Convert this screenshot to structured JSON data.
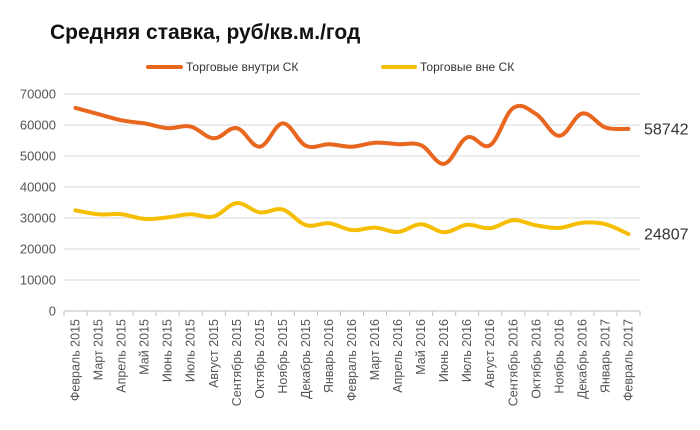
{
  "chart_data": {
    "type": "line",
    "title": "Средняя ставка, руб/кв.м./год",
    "xlabel": "",
    "ylabel": "",
    "ylim": [
      0,
      70000
    ],
    "yticks": [
      "0",
      "10000",
      "20000",
      "30000",
      "40000",
      "50000",
      "60000",
      "70000"
    ],
    "grid": true,
    "legend_position": "top",
    "categories": [
      "Февраль 2015",
      "Март 2015",
      "Апрель 2015",
      "Май 2015",
      "Июнь 2015",
      "Июль 2015",
      "Август 2015",
      "Сентябрь 2015",
      "Октябрь 2015",
      "Ноябрь 2015",
      "Декабрь 2015",
      "Январь 2016",
      "Февраль 2016",
      "Март 2016",
      "Апрель 2016",
      "Май 2016",
      "Июнь 2016",
      "Июль 2016",
      "Август 2016",
      "Сентябрь 2016",
      "Октябрь 2016",
      "Ноябрь 2016",
      "Декабрь 2016",
      "Январь 2017",
      "Февраль 2017"
    ],
    "series": [
      {
        "name": "Торговые внутри СК",
        "color": "#E8661E",
        "end_label": "58742",
        "values": [
          65500,
          63500,
          61500,
          60500,
          59000,
          59500,
          55700,
          59000,
          53000,
          60500,
          53300,
          53800,
          53000,
          54300,
          53800,
          53500,
          47500,
          56000,
          53500,
          65500,
          63500,
          56500,
          63700,
          59200,
          58742
        ]
      },
      {
        "name": "Торговые вне СК",
        "color": "#F5BE00",
        "end_label": "24807",
        "values": [
          32500,
          31200,
          31200,
          29700,
          30200,
          31200,
          30500,
          34800,
          31800,
          32700,
          27700,
          28300,
          26100,
          26900,
          25500,
          28000,
          25400,
          27800,
          26700,
          29300,
          27600,
          26800,
          28500,
          28000,
          24807
        ]
      }
    ]
  }
}
